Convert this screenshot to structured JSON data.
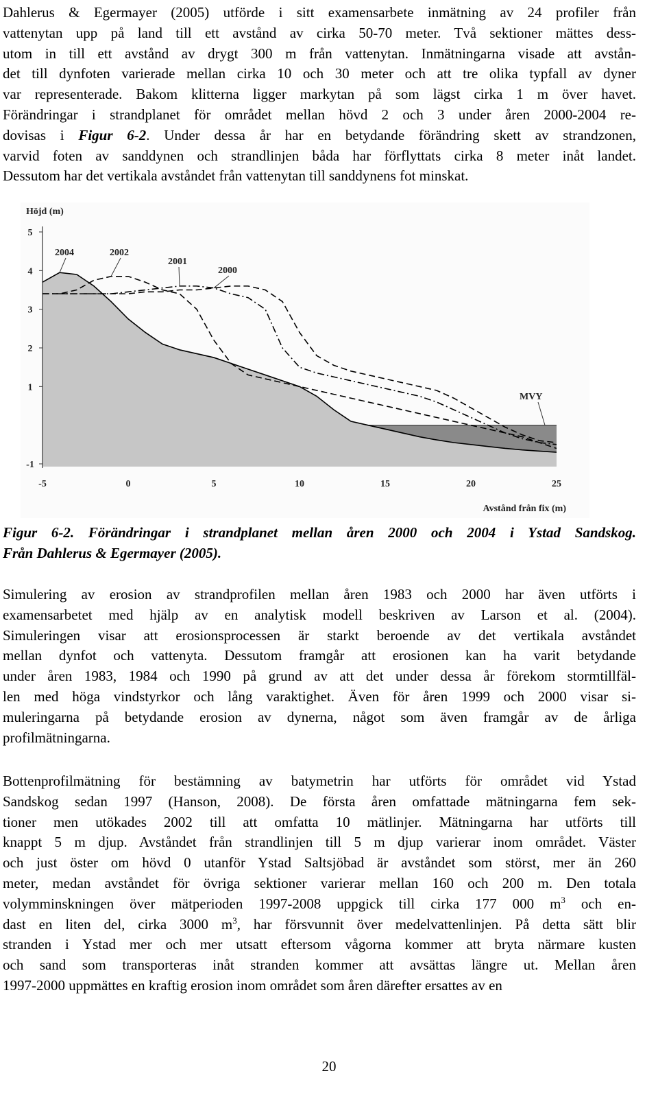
{
  "paragraphs": [
    {
      "lines": [
        "Dahlerus & Egermayer (2005) utförde i sitt examensarbete inmätning av 24 profiler från",
        "vattenytan upp på land till ett avstånd av cirka 50-70 meter. Två sektioner mättes dess-",
        "utom in till ett avstånd av drygt 300 m från vattenytan. Inmätningarna visade att avstån-",
        "det till dynfoten varierade mellan cirka 10 och 30 meter och att tre olika typfall av dyner",
        "var representerade. Bakom klitterna ligger markytan på som lägst cirka 1 m över havet.",
        "Förändringar i strandplanet för området mellan hövd 2 och 3 under åren 2000-2004 re-",
        [
          {
            "text": "dovisas i "
          },
          {
            "text": "Figur 6-2",
            "style": "bold-italic"
          },
          {
            "text": ". Under dessa år har en betydande förändring skett av strandzonen,"
          }
        ],
        "varvid foten av sanddynen och strandlinjen båda har förflyttats cirka 8 meter inåt landet.",
        "Dessutom har det vertikala avståndet från vattenytan till sanddynens fot minskat."
      ]
    },
    {
      "lines": [
        "Simulering av erosion av strandprofilen mellan åren 1983 och 2000 har även utförts i",
        "examensarbetet med hjälp av en analytisk modell beskriven av Larson et al. (2004).",
        "Simuleringen visar att erosionsprocessen är starkt beroende av det vertikala avståndet",
        "mellan dynfot och vattenyta. Dessutom framgår att erosionen kan ha varit betydande",
        "under åren 1983, 1984 och 1990 på grund av att det under dessa år förekom stormtillfäl-",
        "len med höga vindstyrkor och lång varaktighet. Även för åren 1999 och 2000 visar si-",
        "muleringarna på betydande erosion av dynerna, något som även framgår av de årliga",
        "profilmätningarna."
      ]
    },
    {
      "lines": [
        "Bottenprofilmätning för bestämning av batymetrin har utförts för området vid Ystad",
        "Sandskog sedan 1997 (Hanson, 2008). De första åren omfattade mätningarna fem sek-",
        "tioner men utökades 2002 till att omfatta 10 mätlinjer. Mätningarna har utförts till",
        "knappt 5 m djup. Avståndet från strandlinjen till 5 m djup varierar inom området. Väster",
        "och just öster om hövd 0 utanför Ystad Saltsjöbad är avståndet som störst, mer än 260",
        "meter, medan avståndet för övriga sektioner varierar mellan 160 och 200 m. Den totala",
        [
          {
            "text": "volymminskningen över mätperioden 1997-2008 uppgick till cirka 177 000 m"
          },
          {
            "text": "3",
            "style": "sup"
          },
          {
            "text": " och en-"
          }
        ],
        [
          {
            "text": "dast en liten del, cirka 3000 m"
          },
          {
            "text": "3",
            "style": "sup"
          },
          {
            "text": ", har försvunnit över medelvattenlinjen. På detta sätt blir"
          }
        ],
        "stranden i Ystad mer och mer utsatt eftersom vågorna kommer att bryta närmare kusten",
        "och sand som transporteras inåt stranden kommer att avsättas längre ut. Mellan åren",
        "1997-2000 uppmättes en kraftig erosion inom området som åren därefter ersattes av en"
      ]
    }
  ],
  "figure": {
    "type": "line",
    "y_label": "Höjd (m)",
    "x_label": "Avstånd från fix (m)",
    "xlim": [
      -5,
      25
    ],
    "ylim": [
      -1,
      5
    ],
    "xticks": [
      -5,
      0,
      5,
      10,
      15,
      20,
      25
    ],
    "yticks": [
      -1,
      1,
      2,
      3,
      4,
      5
    ],
    "x": [
      -5,
      -4,
      -3,
      -2,
      -1,
      0,
      1,
      2,
      3,
      4,
      5,
      6,
      7,
      8,
      9,
      10,
      11,
      12,
      13,
      14,
      15,
      16,
      17,
      18,
      19,
      20,
      21,
      22,
      23,
      24,
      25
    ],
    "series": [
      {
        "name": "2004",
        "style": "solid",
        "color": "#000000",
        "fill": "#c6c6c6",
        "values": [
          3.7,
          3.95,
          3.9,
          3.6,
          3.2,
          2.75,
          2.4,
          2.1,
          1.95,
          1.85,
          1.75,
          1.6,
          1.45,
          1.3,
          1.15,
          1.0,
          0.75,
          0.4,
          0.1,
          0.0,
          -0.1,
          -0.2,
          -0.3,
          -0.38,
          -0.45,
          -0.5,
          -0.55,
          -0.6,
          -0.64,
          -0.67,
          -0.7
        ]
      },
      {
        "name": "2002",
        "style": "dashed",
        "color": "#000000",
        "values": [
          3.4,
          3.4,
          3.5,
          3.75,
          3.85,
          3.85,
          3.7,
          3.5,
          3.4,
          3.0,
          2.2,
          1.6,
          1.3,
          1.2,
          1.1,
          1.0,
          0.9,
          0.8,
          0.7,
          0.6,
          0.5,
          0.4,
          0.3,
          0.2,
          0.1,
          0.0,
          -0.1,
          -0.2,
          -0.3,
          -0.45,
          -0.6
        ]
      },
      {
        "name": "2001",
        "style": "dash-dot",
        "color": "#000000",
        "values": [
          3.4,
          3.4,
          3.4,
          3.4,
          3.4,
          3.45,
          3.5,
          3.55,
          3.6,
          3.6,
          3.55,
          3.4,
          3.3,
          3.0,
          2.0,
          1.5,
          1.35,
          1.25,
          1.15,
          1.05,
          0.95,
          0.85,
          0.75,
          0.6,
          0.4,
          0.2,
          0.0,
          -0.2,
          -0.35,
          -0.45,
          -0.5
        ]
      },
      {
        "name": "2000",
        "style": "dashed",
        "color": "#000000",
        "values": [
          3.4,
          3.4,
          3.4,
          3.4,
          3.4,
          3.4,
          3.45,
          3.45,
          3.5,
          3.5,
          3.55,
          3.6,
          3.6,
          3.5,
          3.2,
          2.4,
          1.8,
          1.55,
          1.4,
          1.3,
          1.2,
          1.1,
          1.0,
          0.9,
          0.7,
          0.45,
          0.2,
          -0.05,
          -0.25,
          -0.4,
          -0.45
        ]
      }
    ],
    "sea_level": {
      "label": "MVY",
      "value": 0,
      "fill": "#8a8a8a"
    }
  },
  "caption": {
    "lines": [
      "Figur 6-2. Förändringar i strandplanet mellan åren 2000 och 2004 i Ystad Sandskog.",
      "Från Dahlerus & Egermayer (2005)."
    ]
  },
  "page_number": 20
}
